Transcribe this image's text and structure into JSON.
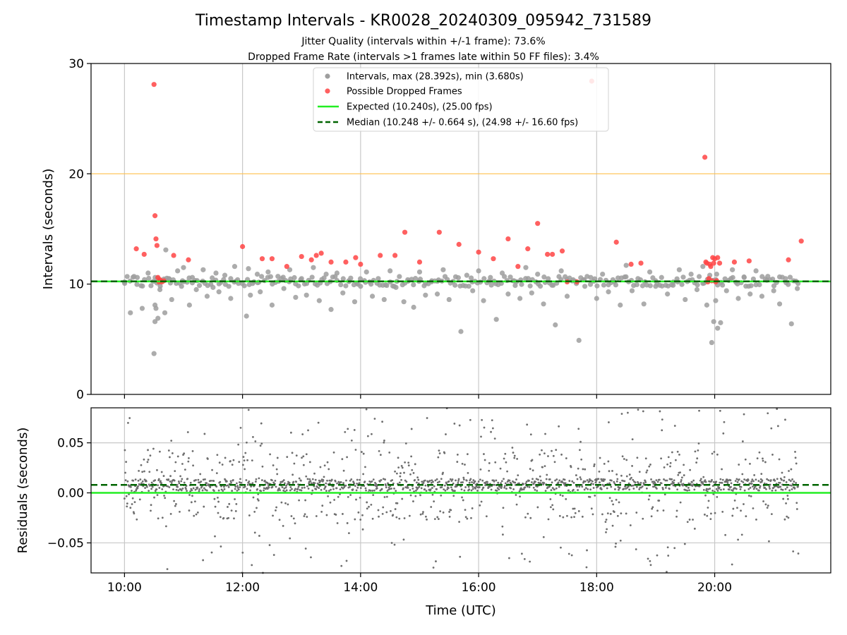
{
  "figure": {
    "title": "Timestamp Intervals - KR0028_20240309_095942_731589",
    "subtitle_1": "Jitter Quality (intervals within +/-1 frame): 73.6%",
    "subtitle_2": "Dropped Frame Rate (intervals >1 frames late within 50 FF files): 3.4%"
  },
  "colors": {
    "intervals": "#9e9e9e",
    "dropped": "#ff4444",
    "expected": "#22ee22",
    "median": "#006400",
    "threshold": "#ffc04d",
    "residuals": "#6e6e6e",
    "grid": "#c8c8c8"
  },
  "chart_data": [
    {
      "type": "scatter",
      "panel": "top",
      "ylabel": "Intervals (seconds)",
      "xlabel": "",
      "xlim": [
        "09:26",
        "21:58"
      ],
      "ylim": [
        0,
        30
      ],
      "grid": "vertical lines only",
      "legend_position": "top-center",
      "x_tick_labels": [
        "10:00",
        "12:00",
        "14:00",
        "16:00",
        "18:00",
        "20:00"
      ],
      "y_tick_labels": [
        "0",
        "10",
        "20",
        "30"
      ],
      "yticks": [
        0,
        10,
        20,
        30
      ],
      "legend": [
        "Intervals, max (28.392s), min (3.680s)",
        "Possible Dropped Frames",
        "Expected (10.240s), (25.00 fps)",
        "Median (10.248 +/- 0.664 s), (24.98 +/- 16.60 fps)"
      ],
      "reference_lines": {
        "expected": 10.24,
        "median": 10.248,
        "threshold": 20.0
      },
      "series": [
        {
          "name": "Intervals, max (28.392s), min (3.680s)",
          "x": [
            "10:00",
            "10:06",
            "10:13",
            "10:18",
            "10:24",
            "10:30",
            "10:31",
            "10:31",
            "10:32",
            "10:33",
            "10:34",
            "10:36",
            "10:41",
            "10:42",
            "10:45",
            "10:48",
            "10:54",
            "10:58",
            "11:00",
            "11:06",
            "11:09",
            "11:13",
            "11:20",
            "11:24",
            "11:30",
            "11:33",
            "11:36",
            "11:42",
            "11:48",
            "11:52",
            "11:55",
            "12:04",
            "12:06",
            "12:08",
            "12:15",
            "12:18",
            "12:26",
            "12:30",
            "12:36",
            "12:42",
            "12:48",
            "12:54",
            "13:00",
            "13:05",
            "13:12",
            "13:18",
            "13:25",
            "13:30",
            "13:36",
            "13:42",
            "13:48",
            "13:54",
            "14:00",
            "14:06",
            "14:12",
            "14:18",
            "14:24",
            "14:30",
            "14:36",
            "14:44",
            "14:48",
            "14:54",
            "15:00",
            "15:06",
            "15:12",
            "15:18",
            "15:24",
            "15:30",
            "15:36",
            "15:42",
            "15:48",
            "15:54",
            "16:00",
            "16:05",
            "16:12",
            "16:18",
            "16:24",
            "16:30",
            "16:36",
            "16:42",
            "16:48",
            "16:54",
            "17:00",
            "17:06",
            "17:12",
            "17:18",
            "17:24",
            "17:30",
            "17:36",
            "17:42",
            "17:48",
            "17:54",
            "18:00",
            "18:06",
            "18:12",
            "18:18",
            "18:24",
            "18:30",
            "18:36",
            "18:42",
            "18:48",
            "18:54",
            "19:00",
            "19:06",
            "19:12",
            "19:18",
            "19:24",
            "19:30",
            "19:36",
            "19:42",
            "19:48",
            "19:52",
            "19:55",
            "19:57",
            "19:59",
            "20:01",
            "20:02",
            "20:03",
            "20:06",
            "20:12",
            "20:18",
            "20:24",
            "20:30",
            "20:36",
            "20:42",
            "20:48",
            "20:54",
            "21:00",
            "21:06",
            "21:12",
            "21:18",
            "21:24"
          ],
          "y": [
            10.2,
            7.4,
            10.6,
            7.8,
            11.0,
            3.7,
            6.6,
            8.1,
            7.8,
            10.1,
            6.9,
            9.5,
            7.4,
            13.1,
            10.5,
            8.6,
            11.2,
            9.8,
            11.5,
            8.1,
            10.6,
            9.5,
            11.3,
            8.9,
            9.7,
            11.0,
            9.3,
            10.8,
            8.7,
            11.6,
            10.4,
            7.1,
            11.4,
            9.0,
            10.9,
            9.3,
            11.1,
            8.1,
            10.7,
            9.6,
            11.3,
            8.8,
            10.5,
            9.0,
            11.5,
            8.5,
            10.9,
            7.7,
            11.0,
            9.2,
            10.3,
            8.4,
            9.8,
            11.1,
            8.9,
            10.5,
            8.6,
            11.2,
            9.7,
            8.4,
            10.4,
            7.9,
            11.1,
            9.0,
            10.2,
            9.1,
            11.3,
            8.6,
            9.9,
            5.7,
            10.8,
            9.4,
            11.2,
            8.5,
            10.6,
            6.8,
            11.0,
            9.1,
            10.3,
            8.7,
            11.5,
            9.2,
            10.9,
            8.2,
            10.1,
            6.3,
            11.2,
            8.9,
            10.4,
            4.9,
            9.8,
            10.6,
            8.7,
            10.9,
            9.3,
            10.2,
            8.1,
            11.7,
            9.4,
            10.5,
            8.2,
            11.1,
            9.8,
            10.6,
            9.1,
            10.2,
            11.3,
            8.6,
            10.9,
            9.5,
            11.6,
            8.1,
            10.8,
            4.7,
            6.6,
            8.5,
            10.9,
            6.0,
            6.5,
            9.4,
            11.3,
            8.7,
            10.6,
            9.1,
            11.2,
            8.9,
            10.7,
            9.4,
            8.2,
            10.5,
            6.4,
            9.6
          ]
        },
        {
          "name": "Possible Dropped Frames",
          "x": [
            "10:12",
            "10:20",
            "10:30",
            "10:31",
            "10:32",
            "10:33",
            "10:34",
            "10:35",
            "10:36",
            "10:37",
            "10:38",
            "10:40",
            "10:50",
            "11:05",
            "12:00",
            "12:20",
            "12:30",
            "12:45",
            "13:00",
            "13:10",
            "13:15",
            "13:20",
            "13:30",
            "13:45",
            "13:55",
            "14:00",
            "14:20",
            "14:35",
            "14:45",
            "15:00",
            "15:20",
            "15:40",
            "16:00",
            "16:15",
            "16:30",
            "16:40",
            "16:50",
            "17:00",
            "17:10",
            "17:15",
            "17:25",
            "17:30",
            "17:40",
            "17:55",
            "18:20",
            "18:35",
            "18:45",
            "19:50",
            "19:51",
            "19:52",
            "19:53",
            "19:54",
            "19:55",
            "19:56",
            "19:57",
            "19:58",
            "19:59",
            "20:00",
            "20:01",
            "20:02",
            "20:03",
            "20:05",
            "20:20",
            "20:35",
            "21:15",
            "21:28"
          ],
          "y": [
            13.2,
            12.7,
            28.1,
            16.2,
            14.1,
            13.5,
            10.6,
            10.2,
            10.4,
            10.3,
            10.2,
            10.3,
            12.6,
            12.2,
            13.4,
            12.3,
            12.3,
            11.6,
            12.5,
            12.2,
            12.6,
            12.8,
            12.0,
            12.0,
            12.4,
            11.8,
            12.6,
            12.6,
            14.7,
            12.0,
            14.7,
            13.6,
            12.9,
            12.3,
            14.1,
            11.6,
            13.2,
            15.5,
            12.7,
            12.7,
            13.0,
            10.2,
            10.2,
            28.4,
            13.8,
            11.8,
            11.9,
            21.5,
            12.0,
            11.9,
            10.2,
            10.5,
            11.8,
            11.6,
            10.3,
            12.4,
            11.9,
            12.3,
            10.2,
            10.3,
            12.4,
            11.9,
            12.0,
            12.1,
            12.2,
            13.9
          ]
        }
      ]
    },
    {
      "type": "scatter",
      "panel": "bottom",
      "ylabel": "Residuals (seconds)",
      "xlabel": "Time (UTC)",
      "xlim": [
        "09:26",
        "21:58"
      ],
      "ylim": [
        -0.08,
        0.085
      ],
      "grid": "vertical and horizontal lines",
      "x_tick_labels": [
        "10:00",
        "12:00",
        "14:00",
        "16:00",
        "18:00",
        "20:00"
      ],
      "y_tick_labels": [
        "0.05",
        "0.00",
        "−0.05"
      ],
      "yticks": [
        0.05,
        0.0,
        -0.05
      ],
      "reference_lines": {
        "expected": 0.0,
        "median": 0.008
      },
      "series": [
        {
          "name": "",
          "x_range": [
            "10:00",
            "21:25"
          ],
          "sample_count": 1700
        }
      ]
    }
  ]
}
